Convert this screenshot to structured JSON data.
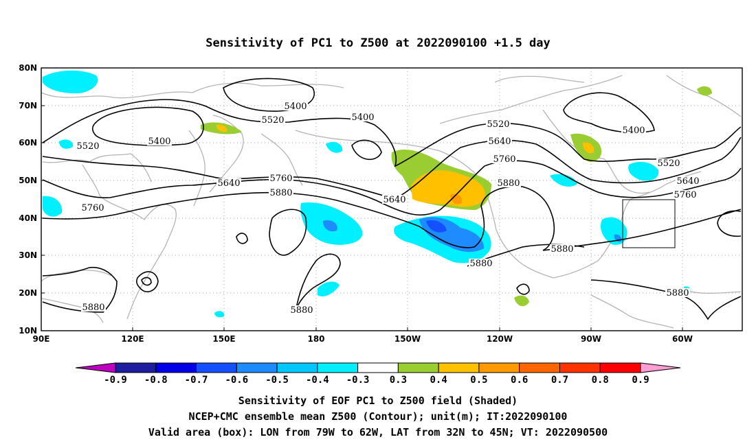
{
  "title": "Sensitivity of PC1 to Z500 at 2022090100 +1.5 day",
  "map": {
    "lon_labels": [
      "90E",
      "120E",
      "150E",
      "180",
      "150W",
      "120W",
      "90W",
      "60W"
    ],
    "lat_labels": [
      "80N",
      "70N",
      "60N",
      "50N",
      "40N",
      "30N",
      "20N",
      "10N"
    ],
    "contour_labels": [
      "5400",
      "5400",
      "5400",
      "5400",
      "5520",
      "5520",
      "5520",
      "5520",
      "5640",
      "5640",
      "5640",
      "5640",
      "5760",
      "5760",
      "5760",
      "5760",
      "5880",
      "5880",
      "5880",
      "5880",
      "5880",
      "5880",
      "5880"
    ],
    "box": {
      "lon_west": "79W",
      "lon_east": "62W",
      "lat_south": "32N",
      "lat_north": "45N"
    }
  },
  "colorbar": {
    "labels": [
      "-0.9",
      "-0.8",
      "-0.7",
      "-0.6",
      "-0.5",
      "-0.4",
      "-0.3",
      "0.3",
      "0.4",
      "0.5",
      "0.6",
      "0.7",
      "0.8",
      "0.9"
    ],
    "colors": [
      "#c000c0",
      "#1e1ea0",
      "#0000e6",
      "#1450ff",
      "#1e8cff",
      "#00c8ff",
      "#00f0ff",
      "#ffffff",
      "#9acd32",
      "#ffc000",
      "#ff9900",
      "#ff6600",
      "#ff3300",
      "#ff0000",
      "#ff9ed4"
    ]
  },
  "footer": {
    "line1": "Sensitivity of EOF PC1 to Z500 field (Shaded)",
    "line2": "NCEP+CMC ensemble mean Z500 (Contour); unit(m); IT:2022090100",
    "line3": "Valid area (box): LON from 79W to 62W, LAT from 32N to 45N; VT: 2022090500"
  }
}
